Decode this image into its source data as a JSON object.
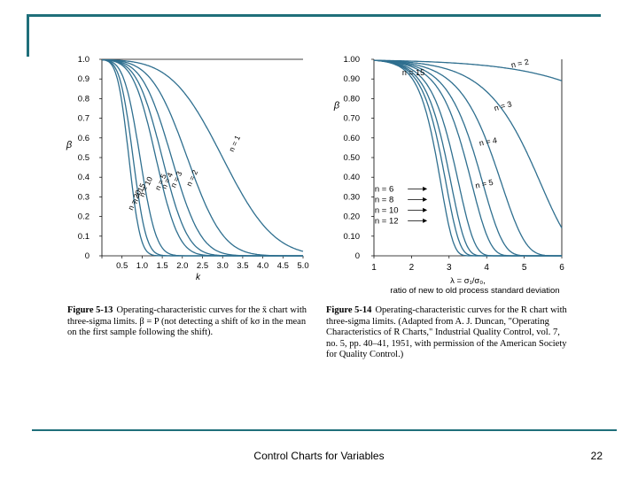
{
  "slide": {
    "footer_title": "Control Charts for Variables",
    "page_number": "22",
    "accent_color": "#1f6f7a"
  },
  "chart_data": [
    {
      "type": "line",
      "figure_label": "Figure 5-13",
      "caption_text": "Operating-characteristic curves for the x̄ chart with three-sigma limits. β = P (not detecting a shift of kσ in the mean on the first sample following the shift).",
      "xlabel": "k",
      "ylabel": "β",
      "xlim": [
        0,
        5.0
      ],
      "ylim": [
        0,
        1.0
      ],
      "xticks": [
        "0",
        "0.5",
        "1.0",
        "1.5",
        "2.0",
        "2.5",
        "3.0",
        "3.5",
        "4.0",
        "4.5",
        "5.0"
      ],
      "yticks": [
        "0",
        "0.1",
        "0.2",
        "0.3",
        "0.4",
        "0.5",
        "0.6",
        "0.7",
        "0.8",
        "0.9",
        "1.0"
      ],
      "series": [
        {
          "name": "n = 1",
          "label": "n = 1",
          "n": 1
        },
        {
          "name": "n = 2",
          "label": "n = 2",
          "n": 2
        },
        {
          "name": "n = 3",
          "label": "n = 3",
          "n": 3
        },
        {
          "name": "n = 4",
          "label": "n = 4",
          "n": 4
        },
        {
          "name": "n = 5",
          "label": "n = 5",
          "n": 5
        },
        {
          "name": "n = 10",
          "label": "n = 10",
          "n": 10
        },
        {
          "name": "n = 15",
          "label": "n = 15",
          "n": 15
        },
        {
          "name": "n = 20",
          "label": "n = 20",
          "n": 20
        }
      ]
    },
    {
      "type": "line",
      "figure_label": "Figure 5-14",
      "caption_text": "Operating-characteristic curves for the R chart with three-sigma limits. (Adapted from A. J. Duncan, \"Operating Characteristics of R Charts,\" Industrial Quality Control, vol. 7, no. 5, pp. 40–41, 1951, with permission of the American Society for Quality Control.)",
      "xlabel": "λ = σ₁/σ₀, ratio of new to old process standard deviation",
      "ylabel": "β",
      "xlim": [
        1,
        6
      ],
      "ylim": [
        0,
        1.0
      ],
      "xticks": [
        "1",
        "2",
        "3",
        "4",
        "5",
        "6"
      ],
      "yticks": [
        "0",
        "0.10",
        "0.20",
        "0.30",
        "0.40",
        "0.50",
        "0.60",
        "0.70",
        "0.80",
        "0.90",
        "1.00"
      ],
      "series": [
        {
          "name": "n = 2",
          "label": "n = 2",
          "n": 2
        },
        {
          "name": "n = 3",
          "label": "n = 3",
          "n": 3
        },
        {
          "name": "n = 4",
          "label": "n = 4",
          "n": 4
        },
        {
          "name": "n = 5",
          "label": "n = 5",
          "n": 5
        },
        {
          "name": "n = 6",
          "label": "n = 6",
          "n": 6
        },
        {
          "name": "n = 8",
          "label": "n = 8",
          "n": 8
        },
        {
          "name": "n = 10",
          "label": "n = 10",
          "n": 10
        },
        {
          "name": "n = 12",
          "label": "n = 12",
          "n": 12
        },
        {
          "name": "n = 15",
          "label": "n = 15",
          "n": 15
        }
      ],
      "legend_stack": [
        "n = 6",
        "n = 8",
        "n = 10",
        "n = 12"
      ]
    }
  ]
}
